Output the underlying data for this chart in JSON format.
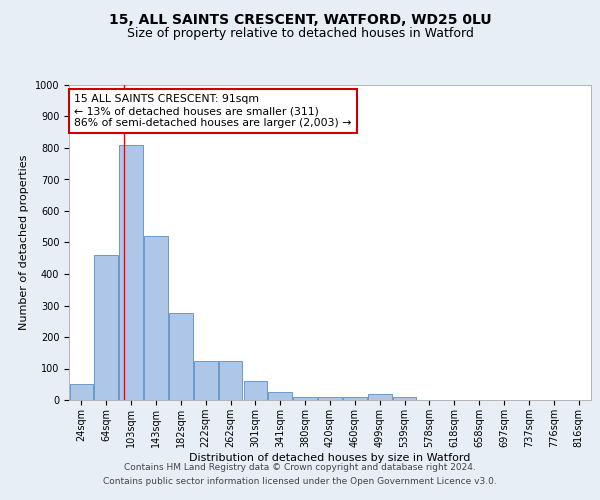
{
  "title1": "15, ALL SAINTS CRESCENT, WATFORD, WD25 0LU",
  "title2": "Size of property relative to detached houses in Watford",
  "xlabel": "Distribution of detached houses by size in Watford",
  "ylabel": "Number of detached properties",
  "categories": [
    "24sqm",
    "64sqm",
    "103sqm",
    "143sqm",
    "182sqm",
    "222sqm",
    "262sqm",
    "301sqm",
    "341sqm",
    "380sqm",
    "420sqm",
    "460sqm",
    "499sqm",
    "539sqm",
    "578sqm",
    "618sqm",
    "658sqm",
    "697sqm",
    "737sqm",
    "776sqm",
    "816sqm"
  ],
  "values": [
    50,
    460,
    810,
    520,
    275,
    125,
    125,
    60,
    25,
    10,
    10,
    10,
    20,
    10,
    0,
    0,
    0,
    0,
    0,
    0,
    0
  ],
  "bar_color": "#aec6e8",
  "bar_edge_color": "#5a8fc2",
  "bar_edge_width": 0.6,
  "red_line_x": 1.72,
  "annotation_text": "15 ALL SAINTS CRESCENT: 91sqm\n← 13% of detached houses are smaller (311)\n86% of semi-detached houses are larger (2,003) →",
  "annotation_box_color": "#ffffff",
  "annotation_box_edge_color": "#cc0000",
  "ylim": [
    0,
    1000
  ],
  "yticks": [
    0,
    100,
    200,
    300,
    400,
    500,
    600,
    700,
    800,
    900,
    1000
  ],
  "background_color": "#e8eef5",
  "plot_background": "#ffffff",
  "grid_color": "#ffffff",
  "footer1": "Contains HM Land Registry data © Crown copyright and database right 2024.",
  "footer2": "Contains public sector information licensed under the Open Government Licence v3.0.",
  "title1_fontsize": 10,
  "title2_fontsize": 9,
  "axis_label_fontsize": 8,
  "tick_fontsize": 7,
  "annotation_fontsize": 7.8,
  "footer_fontsize": 6.5
}
